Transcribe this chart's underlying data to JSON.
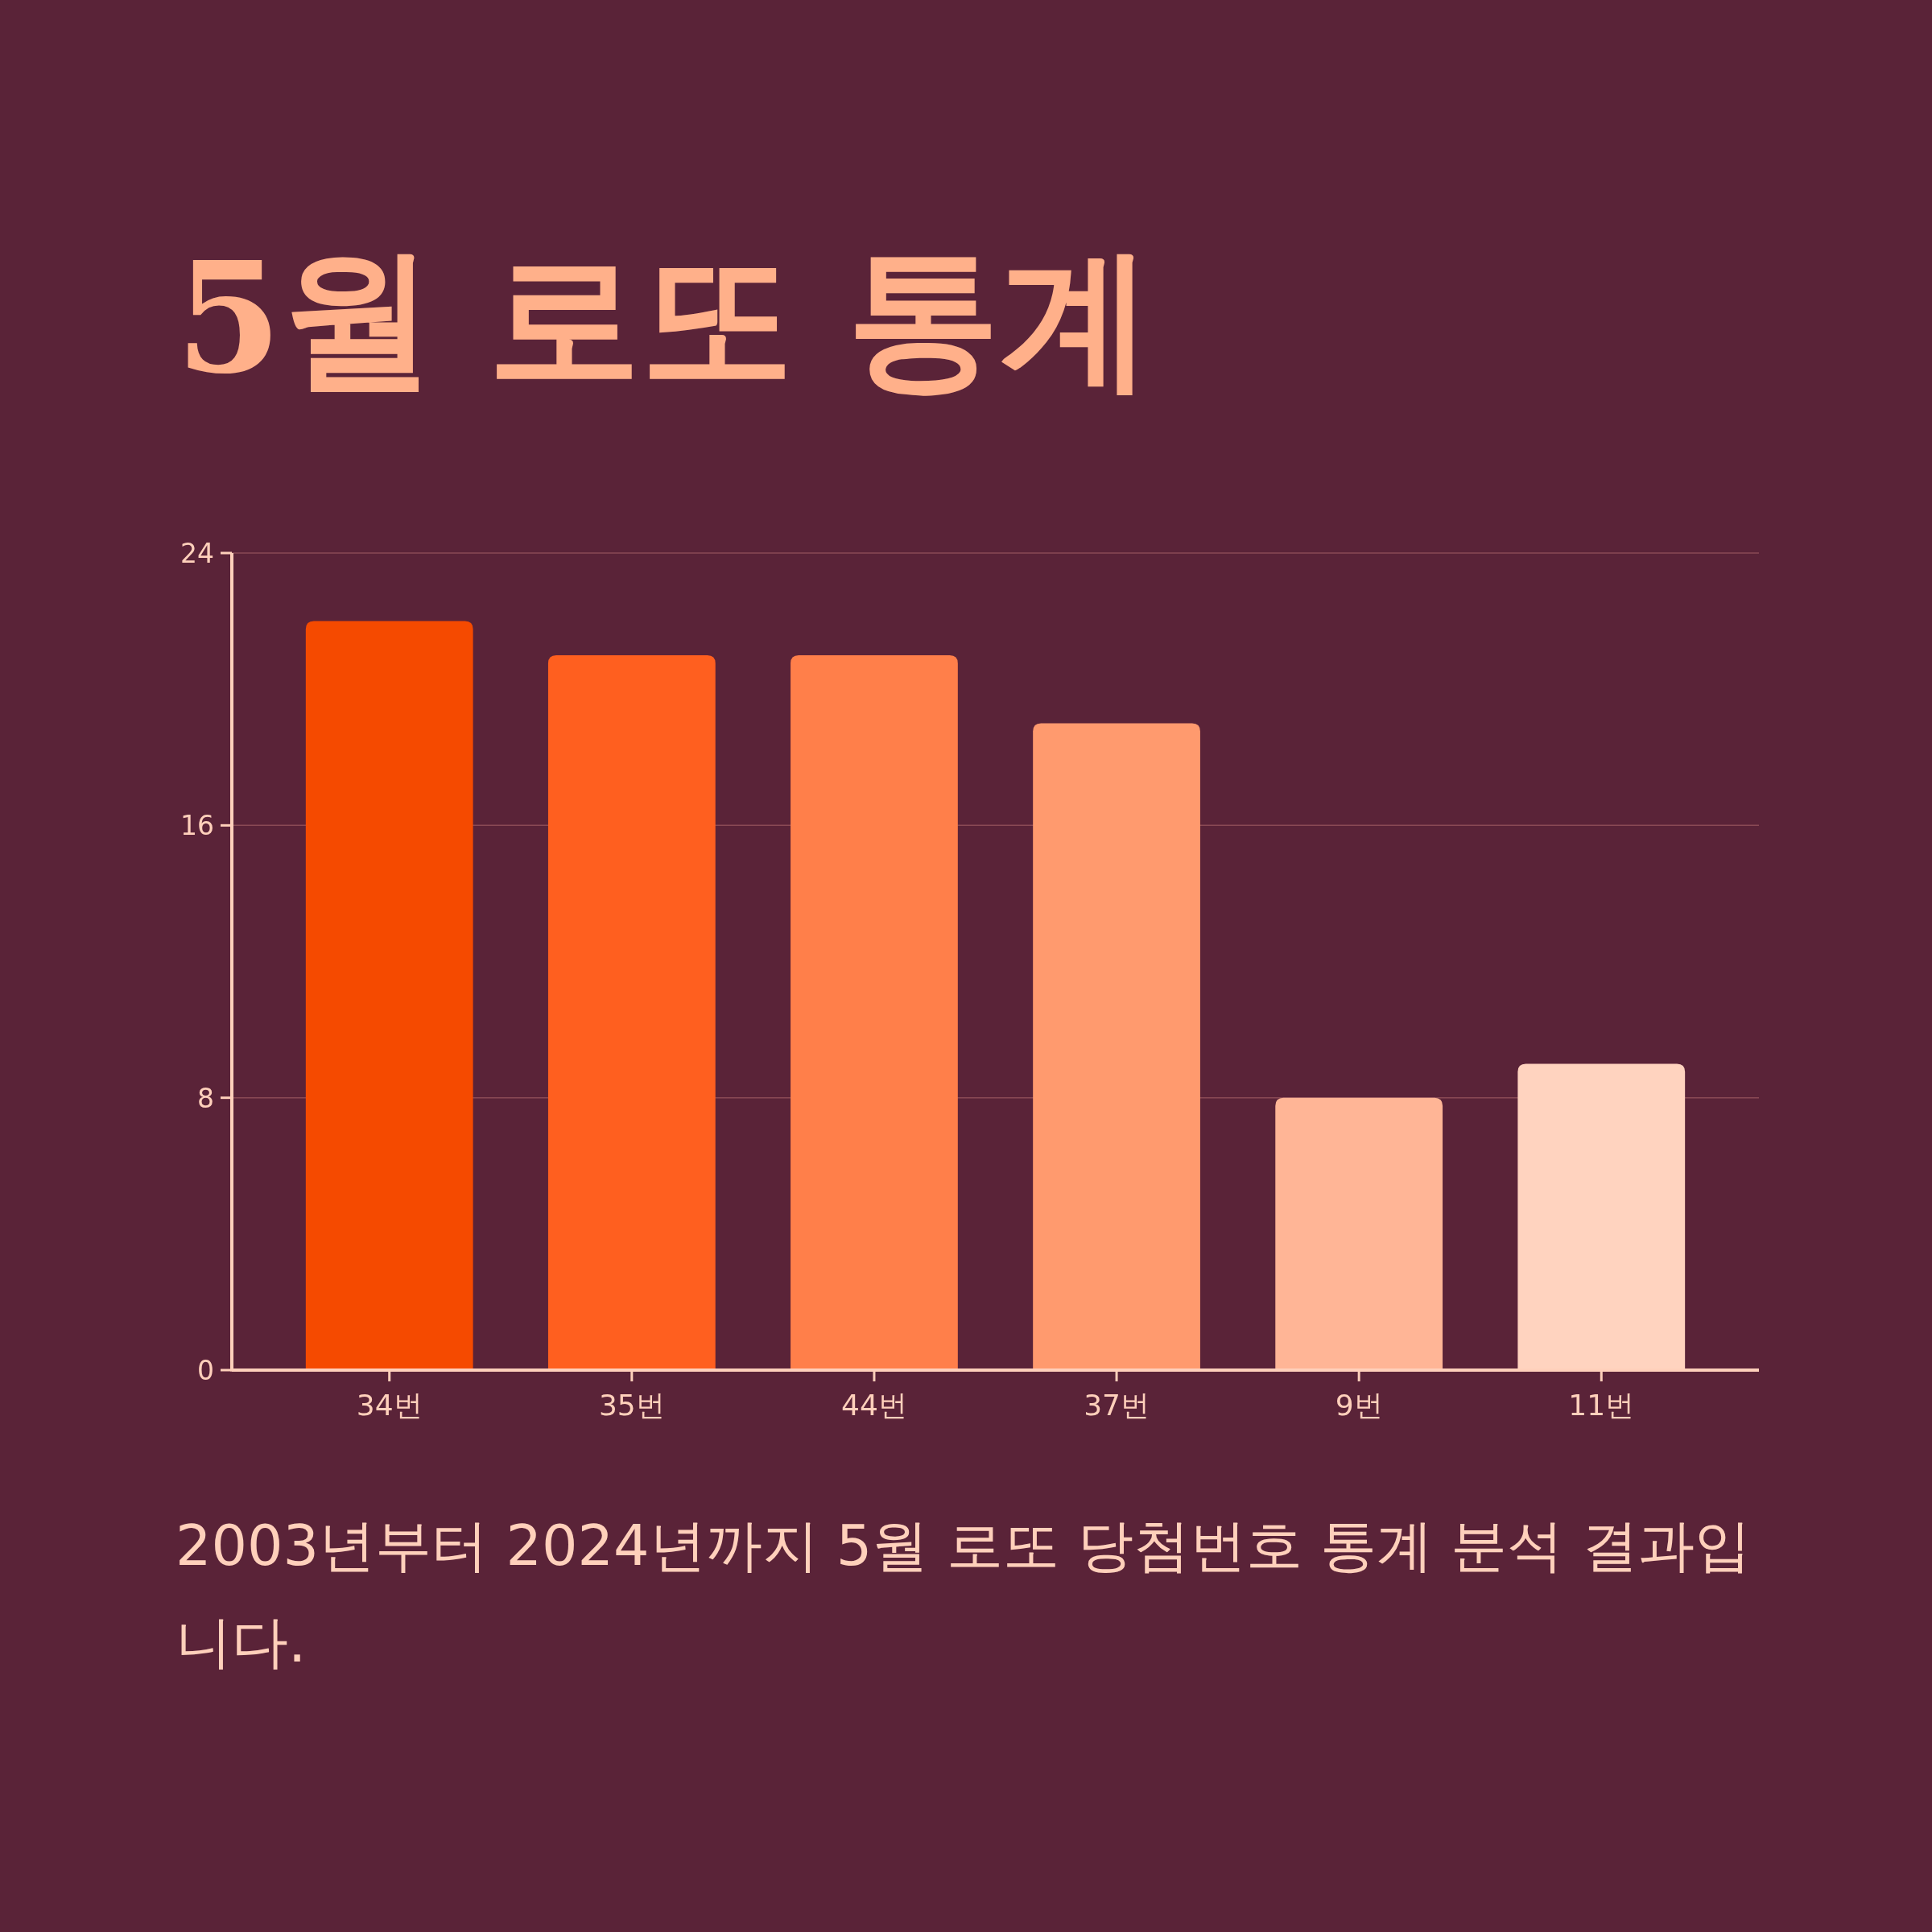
{
  "chart_data": {
    "type": "bar",
    "title": "5월 로또 통계",
    "categories": [
      "34번",
      "35번",
      "44번",
      "37번",
      "9번",
      "11번"
    ],
    "values": [
      22,
      21,
      21,
      19,
      8,
      9
    ],
    "colors": [
      "#f54a00",
      "#ff5f1f",
      "#ff7f4a",
      "#ff9a6e",
      "#ffb596",
      "#ffd3bf"
    ],
    "ylim": [
      0,
      24
    ],
    "yticks": [
      0,
      8,
      16,
      24
    ],
    "grid": "y",
    "annotations": [
      "2003년부터 2024년까지 5월 로또 당첨번호 통계 분석 결과입니다."
    ]
  }
}
